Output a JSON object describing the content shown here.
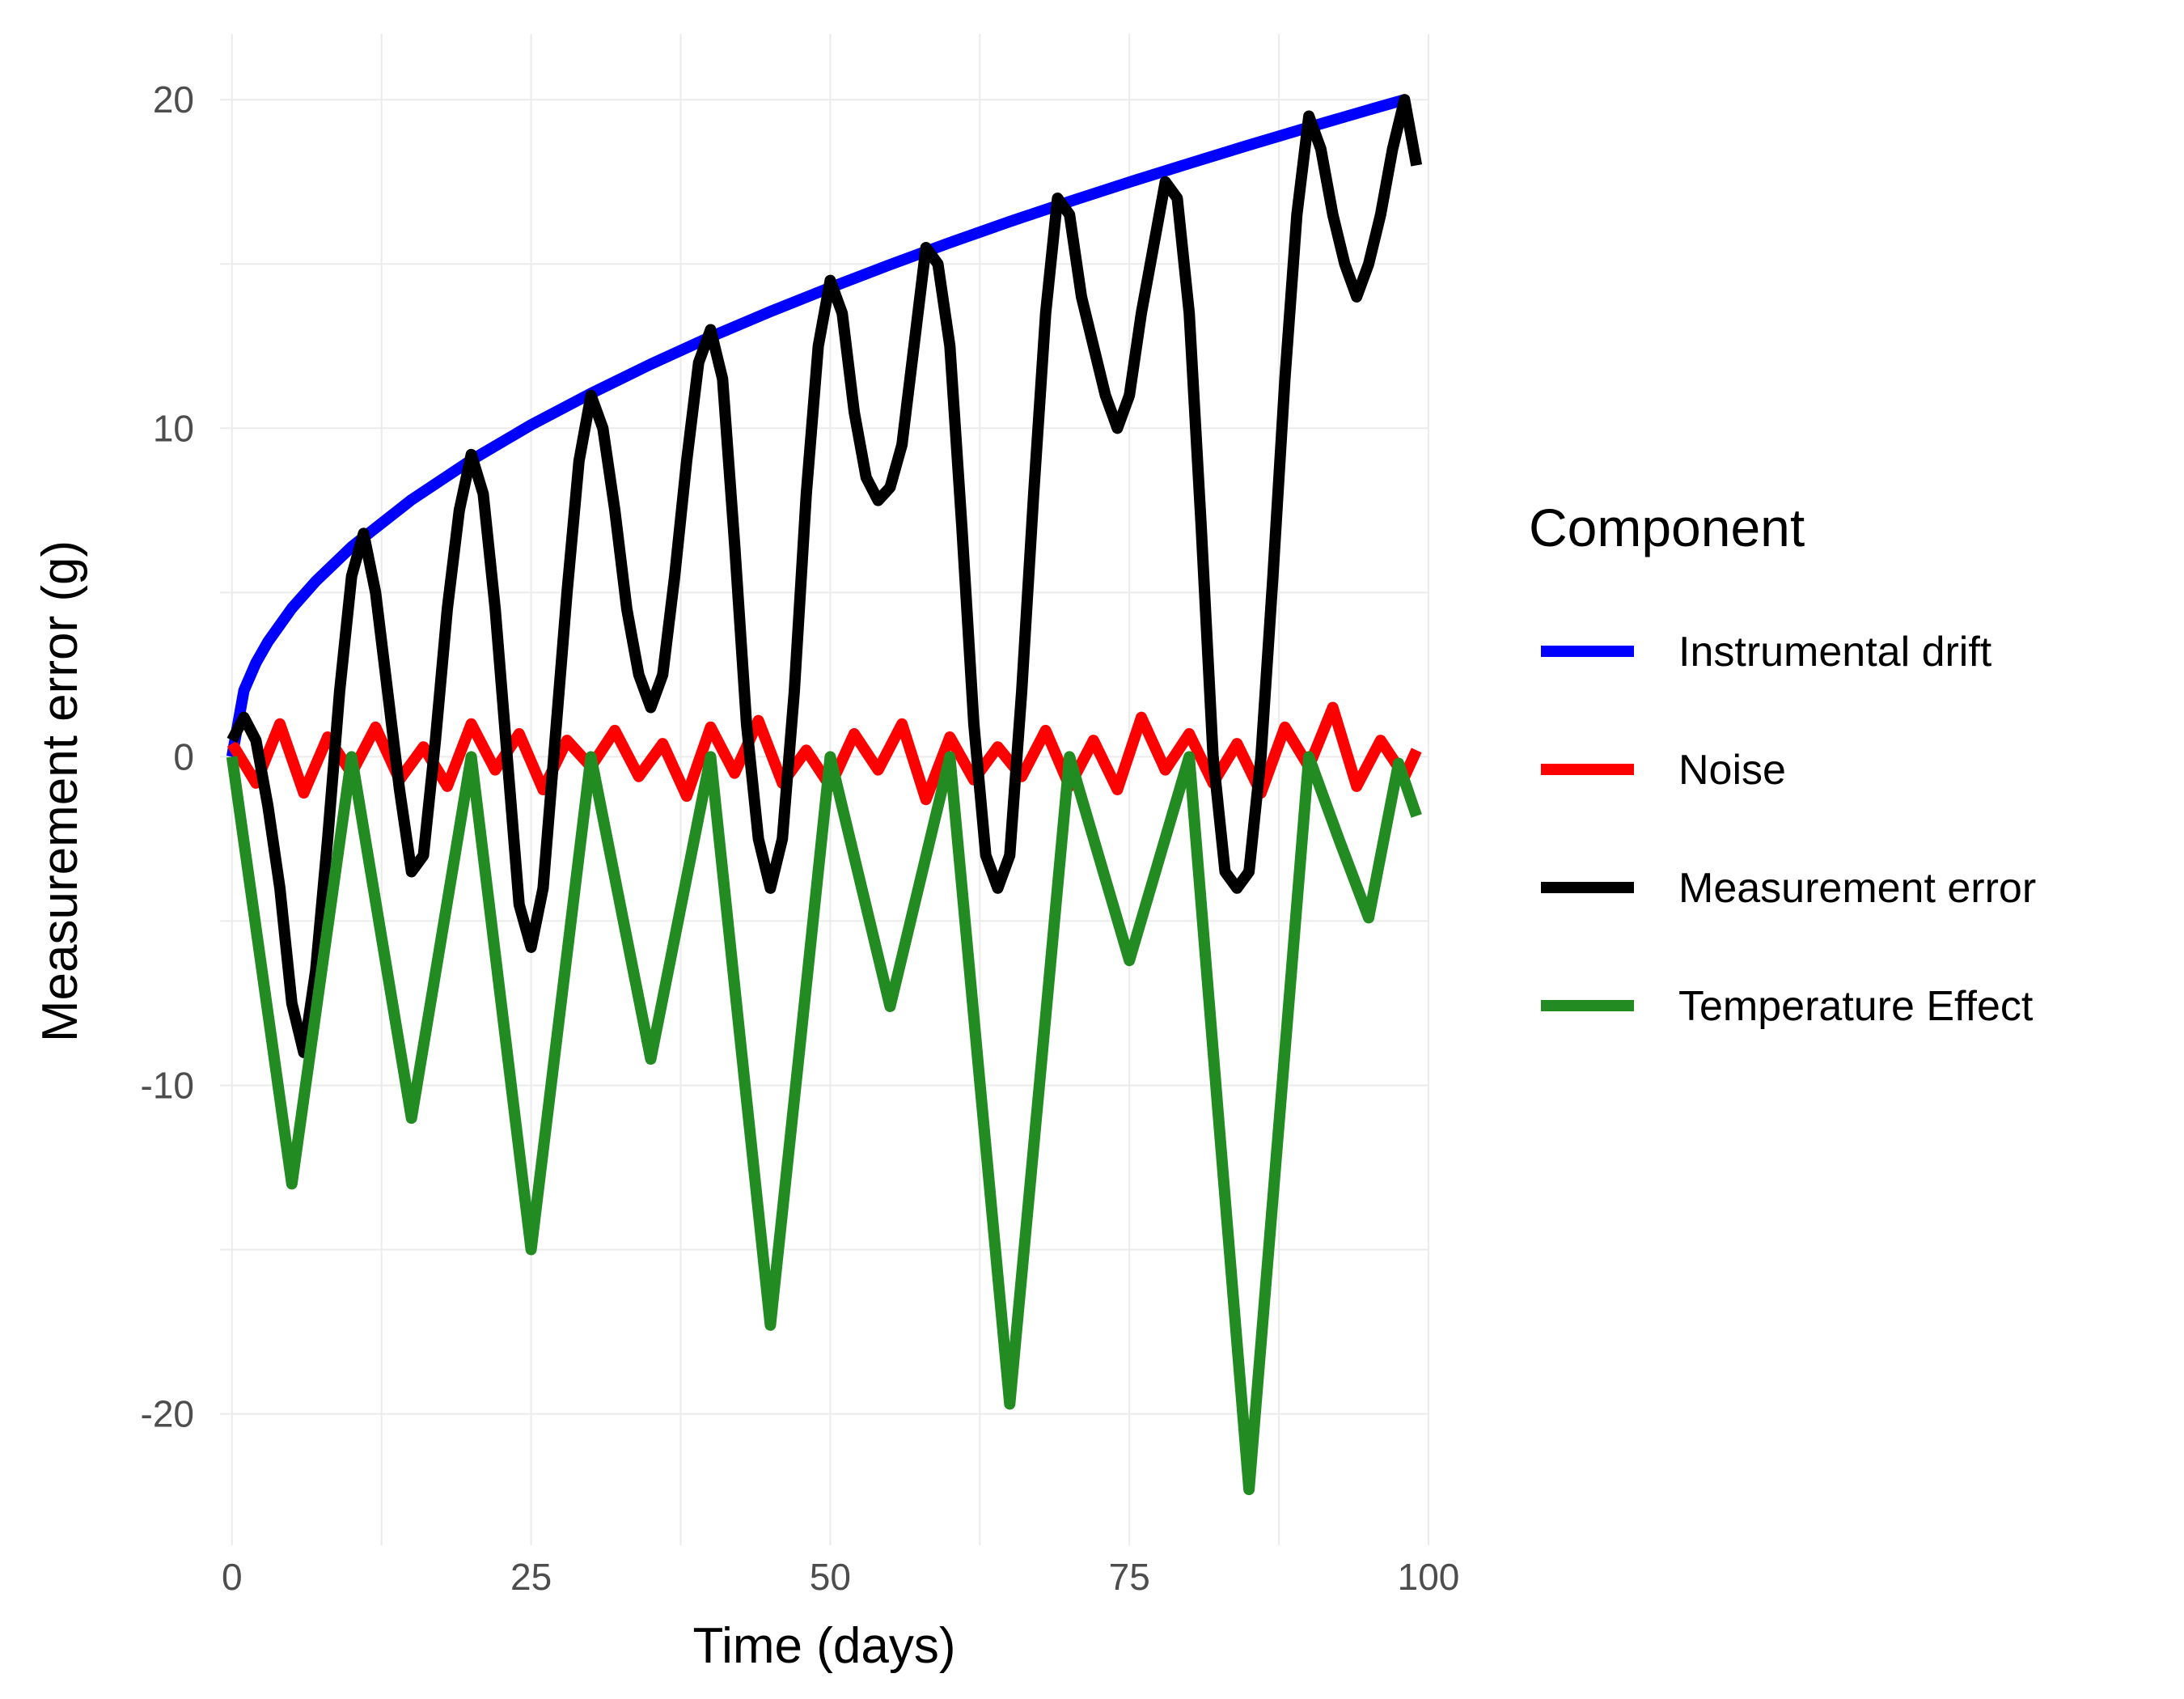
{
  "chart_data": {
    "type": "line",
    "title": "",
    "xlabel": "Time (days)",
    "ylabel": "Measurement error (g)",
    "xlim": [
      -1,
      100
    ],
    "ylim": [
      -24,
      22
    ],
    "x_ticks": [
      0,
      25,
      50,
      75,
      100
    ],
    "y_ticks": [
      -20,
      -10,
      0,
      10,
      20
    ],
    "x_tick_labels": [
      "0",
      "25",
      "50",
      "75",
      "100"
    ],
    "y_tick_labels": [
      "-20",
      "-10",
      "0",
      "10",
      "20"
    ],
    "grid": true,
    "legend": {
      "title": "Component",
      "placement": "right",
      "entries": [
        "Instrumental drift",
        "Noise",
        "Measurement error",
        "Temperature Effect"
      ]
    },
    "series": [
      {
        "name": "Instrumental drift",
        "color": "#0000ff",
        "x": [
          0,
          1,
          2,
          3,
          5,
          7,
          10,
          15,
          20,
          25,
          30,
          35,
          40,
          45,
          50,
          55,
          60,
          65,
          70,
          75,
          80,
          85,
          90,
          95,
          98
        ],
        "y": [
          0,
          2.02,
          2.86,
          3.5,
          4.52,
          5.34,
          6.39,
          7.82,
          9.03,
          10.1,
          11.06,
          11.95,
          12.78,
          13.55,
          14.28,
          14.98,
          15.65,
          16.29,
          16.9,
          17.49,
          18.06,
          18.62,
          19.16,
          19.69,
          20.0
        ]
      },
      {
        "name": "Noise",
        "color": "#ff0000",
        "x": [
          0,
          2,
          4,
          6,
          8,
          10,
          12,
          14,
          16,
          18,
          20,
          22,
          24,
          26,
          28,
          30,
          32,
          34,
          36,
          38,
          40,
          42,
          44,
          46,
          48,
          50,
          52,
          54,
          56,
          58,
          60,
          62,
          64,
          66,
          68,
          70,
          72,
          74,
          76,
          78,
          80,
          82,
          84,
          86,
          88,
          90,
          92,
          94,
          96,
          98,
          99
        ],
        "y": [
          0.4,
          -0.8,
          1.0,
          -1.1,
          0.6,
          -0.5,
          0.9,
          -0.7,
          0.3,
          -0.9,
          1.0,
          -0.4,
          0.7,
          -1.0,
          0.5,
          -0.3,
          0.8,
          -0.6,
          0.4,
          -1.2,
          0.9,
          -0.5,
          1.1,
          -0.8,
          0.2,
          -0.9,
          0.7,
          -0.4,
          1.0,
          -1.3,
          0.6,
          -0.7,
          0.3,
          -0.6,
          0.8,
          -0.9,
          0.5,
          -1.0,
          1.2,
          -0.4,
          0.7,
          -0.8,
          0.4,
          -1.1,
          0.9,
          -0.3,
          1.5,
          -0.9,
          0.5,
          -0.6,
          0.2
        ]
      },
      {
        "name": "Measurement error",
        "color": "#000000",
        "x": [
          0,
          1,
          2,
          3,
          4,
          5,
          6,
          7,
          8,
          9,
          10,
          11,
          12,
          13,
          14,
          15,
          16,
          17,
          18,
          19,
          20,
          21,
          22,
          23,
          24,
          25,
          26,
          27,
          28,
          29,
          30,
          31,
          32,
          33,
          34,
          35,
          36,
          37,
          38,
          39,
          40,
          41,
          42,
          43,
          44,
          45,
          46,
          47,
          48,
          49,
          50,
          51,
          52,
          53,
          54,
          55,
          56,
          57,
          58,
          59,
          60,
          61,
          62,
          63,
          64,
          65,
          66,
          67,
          68,
          69,
          70,
          71,
          72,
          73,
          74,
          75,
          76,
          77,
          78,
          79,
          80,
          81,
          82,
          83,
          84,
          85,
          86,
          87,
          88,
          89,
          90,
          91,
          92,
          93,
          94,
          95,
          96,
          97,
          98,
          99
        ],
        "y": [
          0.5,
          1.2,
          0.5,
          -1.5,
          -4.0,
          -7.5,
          -9.0,
          -6.5,
          -2.5,
          2.0,
          5.5,
          6.8,
          5.0,
          2.0,
          -1.0,
          -3.5,
          -3.0,
          0.5,
          4.5,
          7.5,
          9.2,
          8.0,
          4.5,
          0.0,
          -4.5,
          -5.8,
          -4.0,
          0.5,
          5.0,
          9.0,
          11.0,
          10.0,
          7.5,
          4.5,
          2.5,
          1.5,
          2.5,
          5.5,
          9.0,
          12.0,
          13.0,
          11.5,
          6.5,
          1.0,
          -2.5,
          -4.0,
          -2.5,
          2.0,
          8.0,
          12.5,
          14.5,
          13.5,
          10.5,
          8.5,
          7.8,
          8.2,
          9.5,
          12.5,
          15.5,
          15.0,
          12.5,
          7.0,
          1.0,
          -3.0,
          -4.0,
          -3.0,
          2.0,
          8.0,
          13.5,
          17.0,
          16.5,
          14.0,
          12.5,
          11.0,
          10.0,
          11.0,
          13.5,
          15.5,
          17.5,
          17.0,
          13.5,
          7.0,
          0.0,
          -3.5,
          -4.0,
          -3.5,
          0.0,
          5.5,
          11.5,
          16.5,
          19.5,
          18.5,
          16.5,
          15.0,
          14.0,
          15.0,
          16.5,
          18.5,
          20.0,
          18.0
        ]
      },
      {
        "name": "Temperature Effect",
        "color": "#228b22",
        "x": [
          0,
          2.5,
          5,
          7.5,
          10,
          12.5,
          15,
          17.5,
          20,
          22.5,
          25,
          27.5,
          30,
          32.5,
          35,
          37.5,
          40,
          42.5,
          45,
          47.5,
          50,
          52.5,
          55,
          57.5,
          60,
          62.5,
          65,
          67.5,
          70,
          72.5,
          75,
          77.5,
          80,
          82.5,
          85,
          87.5,
          90,
          92.5,
          95,
          97.5,
          99
        ],
        "y": [
          0,
          -6.5,
          -13.0,
          -6.5,
          0,
          -5.5,
          -11.0,
          -5.5,
          0,
          -7.5,
          -15.0,
          -7.5,
          0,
          -4.6,
          -9.2,
          -4.6,
          0,
          -8.7,
          -17.3,
          -8.7,
          0,
          -3.8,
          -7.6,
          -3.8,
          0,
          -9.9,
          -19.7,
          -9.9,
          0,
          -3.1,
          -6.2,
          -3.1,
          0,
          -11.2,
          -22.3,
          -11.2,
          0,
          -2.5,
          -4.9,
          -0.2,
          -1.8
        ]
      }
    ]
  }
}
